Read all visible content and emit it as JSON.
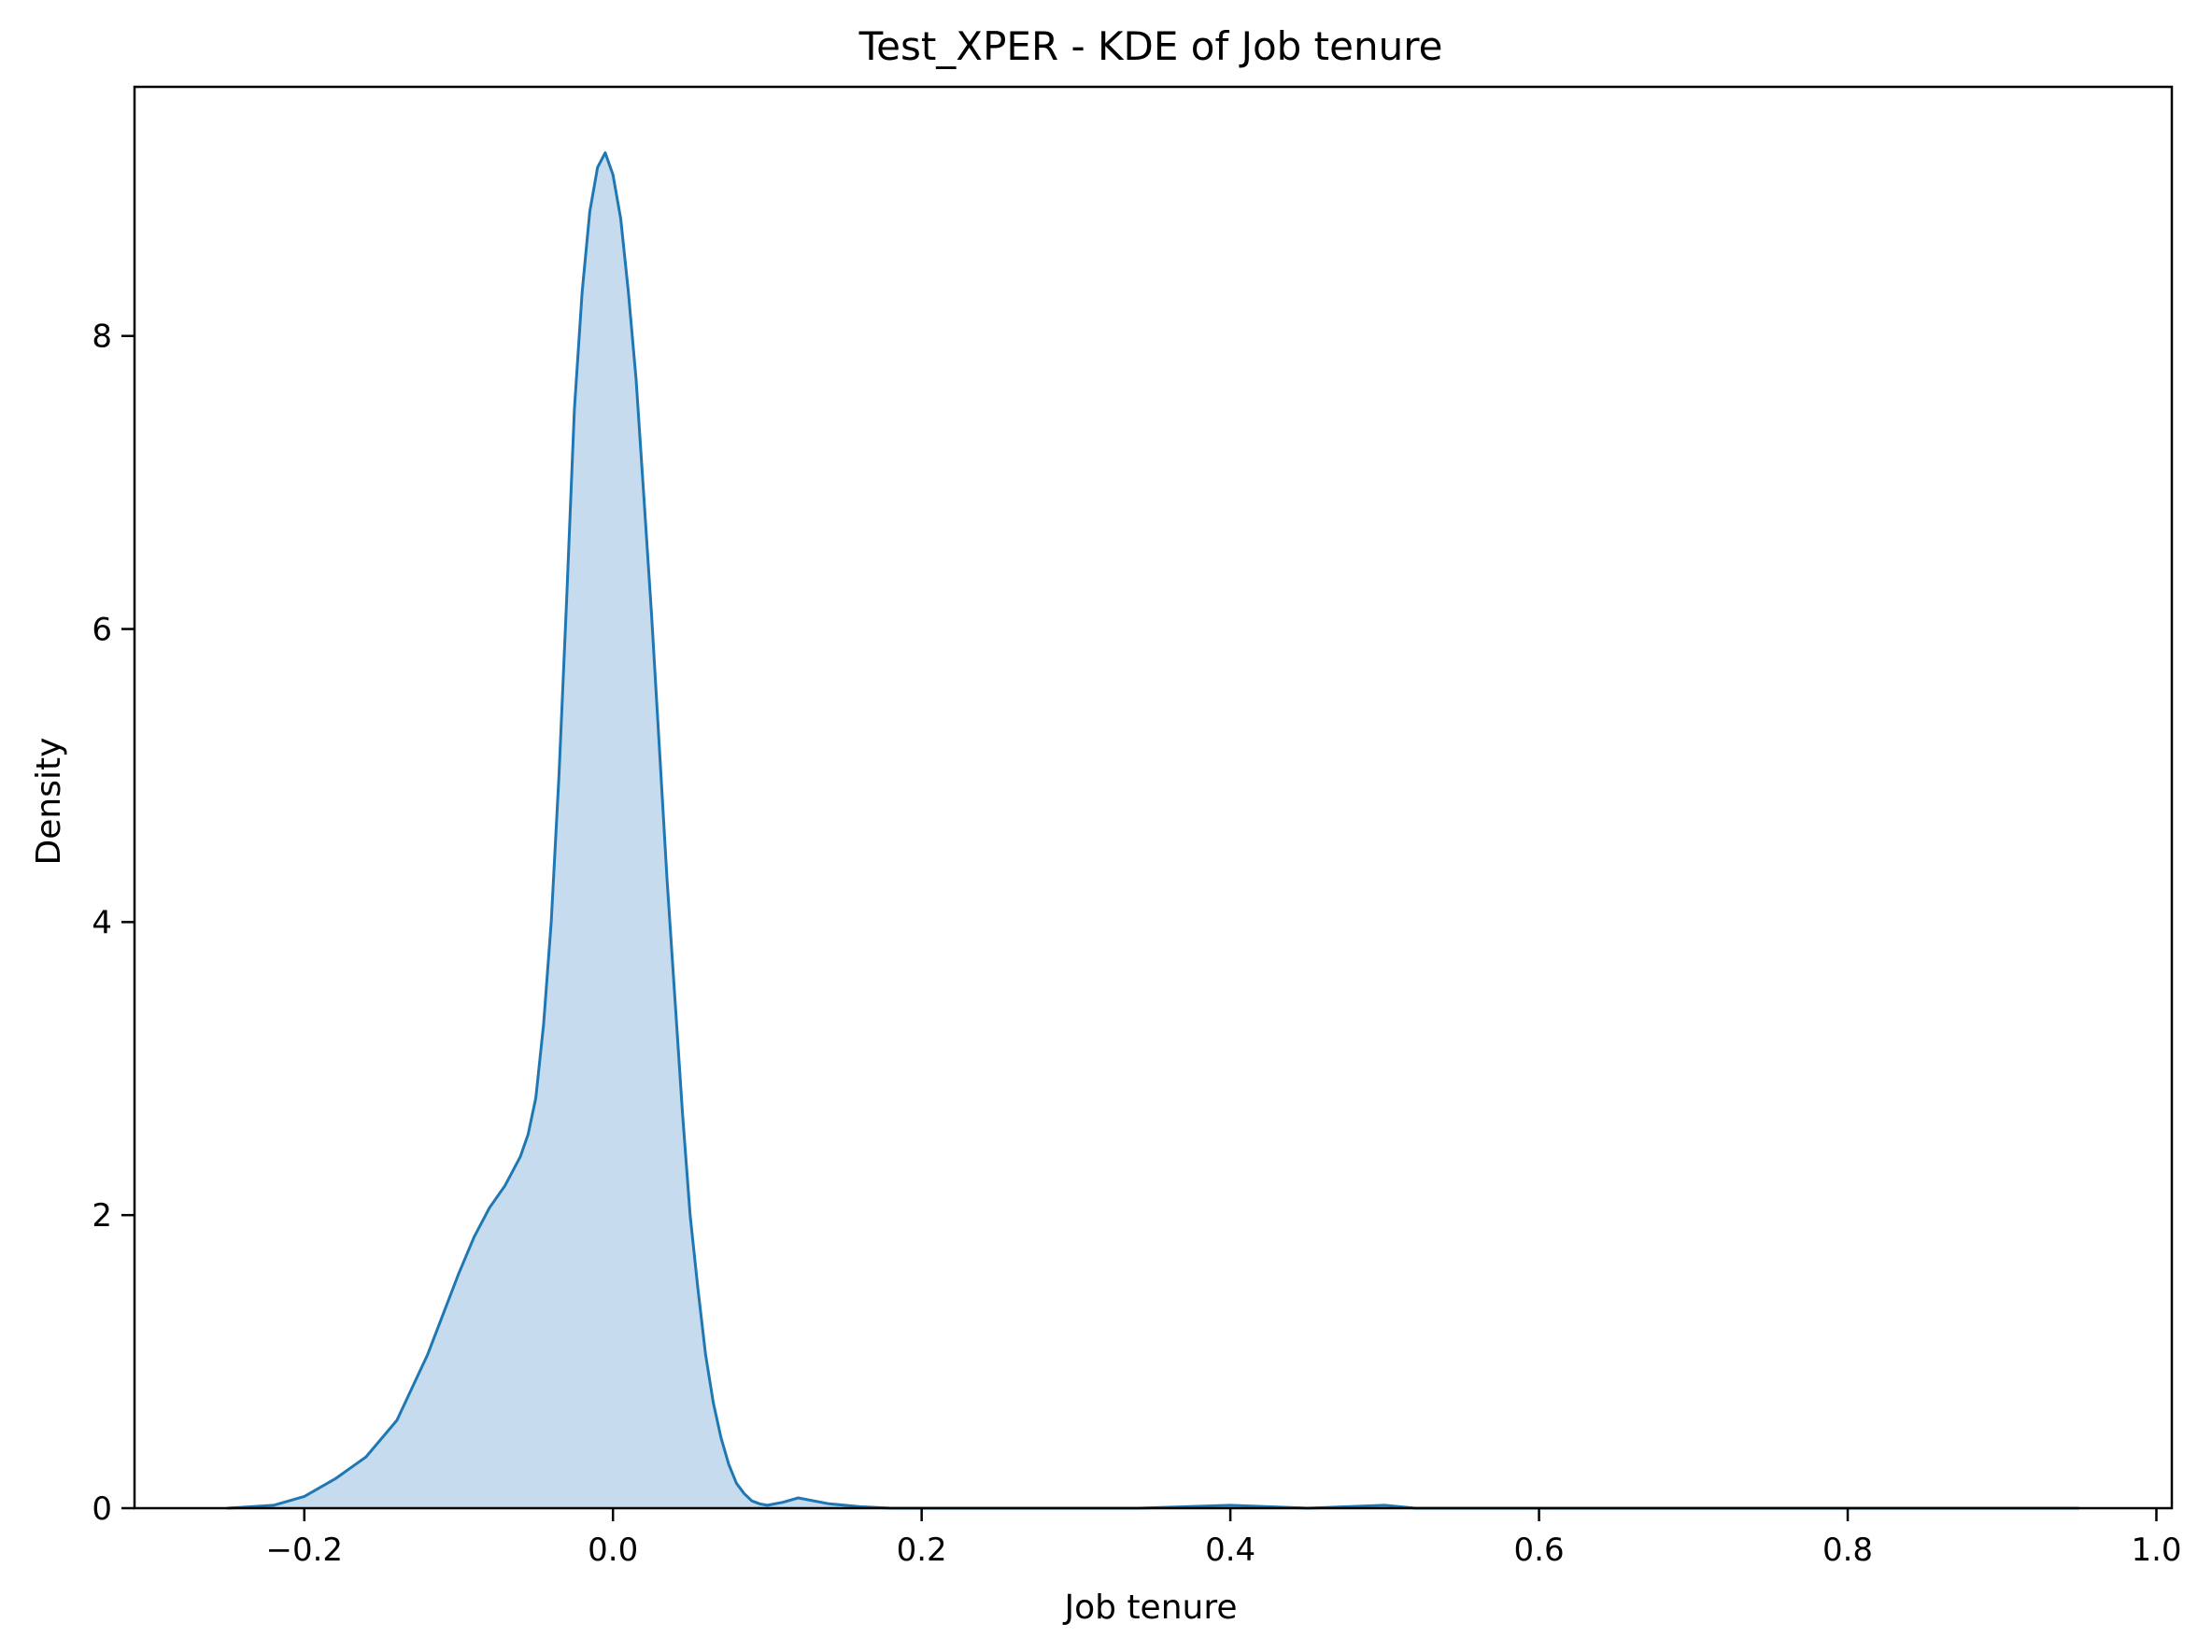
{
  "chart_data": {
    "type": "area",
    "title": "Test_XPER - KDE of Job tenure",
    "xlabel": "Job tenure",
    "ylabel": "Density",
    "xlim": [
      -0.31,
      1.01
    ],
    "ylim": [
      0,
      9.7
    ],
    "xticks": [
      -0.2,
      0.0,
      0.2,
      0.4,
      0.6,
      0.8,
      1.0
    ],
    "xtick_labels": [
      "−0.2",
      "0.0",
      "0.2",
      "0.4",
      "0.6",
      "0.8",
      "1.0"
    ],
    "yticks": [
      0,
      2,
      4,
      6,
      8
    ],
    "ytick_labels": [
      "0",
      "2",
      "4",
      "6",
      "8"
    ],
    "grid": false,
    "legend": false,
    "colors": {
      "line": "#1f77b4",
      "fill": "#c6dbed"
    },
    "series": [
      {
        "x": [
          -0.25,
          -0.22,
          -0.2,
          -0.18,
          -0.16,
          -0.14,
          -0.12,
          -0.1,
          -0.09,
          -0.08,
          -0.07,
          -0.06,
          -0.055,
          -0.05,
          -0.045,
          -0.04,
          -0.035,
          -0.03,
          -0.025,
          -0.02,
          -0.015,
          -0.01,
          -0.005,
          0.0,
          0.005,
          0.01,
          0.015,
          0.02,
          0.025,
          0.03,
          0.035,
          0.04,
          0.045,
          0.05,
          0.055,
          0.06,
          0.065,
          0.07,
          0.075,
          0.08,
          0.085,
          0.09,
          0.095,
          0.1,
          0.11,
          0.12,
          0.14,
          0.16,
          0.18,
          0.2,
          0.22,
          0.25,
          0.28,
          0.31,
          0.34,
          0.4,
          0.45,
          0.5,
          0.52,
          0.56,
          0.6,
          0.64,
          0.7,
          0.74,
          0.78,
          0.82,
          0.84,
          0.88,
          0.92,
          0.95
        ],
        "y": [
          0.0,
          0.02,
          0.08,
          0.2,
          0.35,
          0.6,
          1.05,
          1.6,
          1.85,
          2.05,
          2.2,
          2.4,
          2.55,
          2.8,
          3.3,
          4.0,
          5.0,
          6.2,
          7.5,
          8.3,
          8.85,
          9.15,
          9.25,
          9.1,
          8.8,
          8.3,
          7.7,
          6.9,
          6.1,
          5.2,
          4.3,
          3.5,
          2.7,
          2.0,
          1.5,
          1.05,
          0.72,
          0.48,
          0.3,
          0.17,
          0.1,
          0.05,
          0.03,
          0.02,
          0.04,
          0.07,
          0.03,
          0.01,
          0.0,
          0.0,
          0.0,
          0.0,
          0.0,
          0.0,
          0.0,
          0.02,
          0.0,
          0.02,
          0.0,
          0.0,
          0.0,
          0.0,
          0.0,
          0.0,
          0.0,
          0.0,
          0.0,
          0.0,
          0.0,
          0.0
        ]
      }
    ]
  }
}
